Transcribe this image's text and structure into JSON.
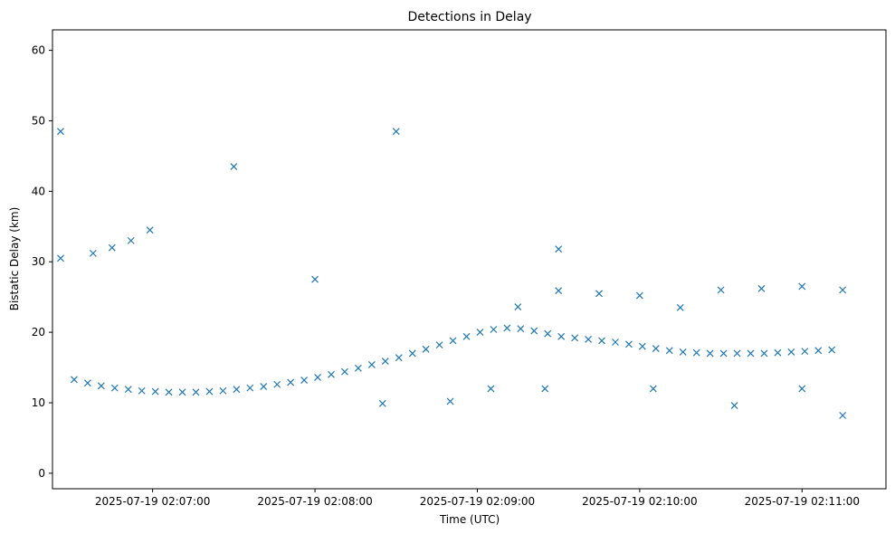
{
  "chart_data": {
    "type": "scatter",
    "title": "Detections in Delay",
    "xlabel": "Time (UTC)",
    "ylabel": "Bistatic Delay (km)",
    "x_tick_labels": [
      "2025-07-19 02:07:00",
      "2025-07-19 02:08:00",
      "2025-07-19 02:09:00",
      "2025-07-19 02:10:00",
      "2025-07-19 02:11:00"
    ],
    "y_ticks": [
      0,
      10,
      20,
      30,
      40,
      50,
      60
    ],
    "xlim": [
      "2025-07-19 02:06:23",
      "2025-07-19 02:11:31"
    ],
    "ylim": [
      -2.2,
      62.9
    ],
    "grid": false,
    "marker": "x",
    "color": "#1f77b4",
    "series": [
      {
        "x": [
          "2025-07-19 02:06:31",
          "2025-07-19 02:06:36",
          "2025-07-19 02:06:41",
          "2025-07-19 02:06:46",
          "2025-07-19 02:06:51",
          "2025-07-19 02:06:56",
          "2025-07-19 02:07:01",
          "2025-07-19 02:07:06",
          "2025-07-19 02:07:11",
          "2025-07-19 02:07:16",
          "2025-07-19 02:07:21",
          "2025-07-19 02:07:26",
          "2025-07-19 02:07:31",
          "2025-07-19 02:07:36",
          "2025-07-19 02:07:41",
          "2025-07-19 02:07:46",
          "2025-07-19 02:07:51",
          "2025-07-19 02:07:56",
          "2025-07-19 02:08:01",
          "2025-07-19 02:08:06",
          "2025-07-19 02:08:11",
          "2025-07-19 02:08:16",
          "2025-07-19 02:08:21",
          "2025-07-19 02:08:26",
          "2025-07-19 02:08:31",
          "2025-07-19 02:08:36",
          "2025-07-19 02:08:41",
          "2025-07-19 02:08:46",
          "2025-07-19 02:08:51",
          "2025-07-19 02:08:56",
          "2025-07-19 02:09:01",
          "2025-07-19 02:09:06",
          "2025-07-19 02:09:11",
          "2025-07-19 02:09:16",
          "2025-07-19 02:09:21",
          "2025-07-19 02:09:26",
          "2025-07-19 02:09:31",
          "2025-07-19 02:09:36",
          "2025-07-19 02:09:41",
          "2025-07-19 02:09:46",
          "2025-07-19 02:09:51",
          "2025-07-19 02:09:56",
          "2025-07-19 02:10:01",
          "2025-07-19 02:10:06",
          "2025-07-19 02:10:11",
          "2025-07-19 02:10:16",
          "2025-07-19 02:10:21",
          "2025-07-19 02:10:26",
          "2025-07-19 02:10:31",
          "2025-07-19 02:10:36",
          "2025-07-19 02:10:41",
          "2025-07-19 02:10:46",
          "2025-07-19 02:10:51",
          "2025-07-19 02:10:56",
          "2025-07-19 02:11:01",
          "2025-07-19 02:11:06",
          "2025-07-19 02:11:11"
        ],
        "y": [
          13.3,
          12.8,
          12.4,
          12.1,
          11.9,
          11.7,
          11.6,
          11.5,
          11.5,
          11.5,
          11.6,
          11.7,
          11.9,
          12.1,
          12.3,
          12.6,
          12.9,
          13.2,
          13.6,
          14.0,
          14.4,
          14.9,
          15.4,
          15.9,
          16.4,
          17.0,
          17.6,
          18.2,
          18.8,
          19.4,
          20.0,
          20.4,
          20.6,
          20.5,
          20.2,
          19.8,
          19.4,
          19.2,
          19.0,
          18.8,
          18.6,
          18.3,
          18.0,
          17.7,
          17.4,
          17.2,
          17.1,
          17.0,
          17.0,
          17.0,
          17.0,
          17.0,
          17.1,
          17.2,
          17.3,
          17.4,
          17.5
        ]
      },
      {
        "x": [
          "2025-07-19 02:06:38",
          "2025-07-19 02:06:45",
          "2025-07-19 02:06:52",
          "2025-07-19 02:06:59"
        ],
        "y": [
          31.2,
          32.0,
          33.0,
          34.5
        ]
      },
      {
        "x": [
          "2025-07-19 02:09:15",
          "2025-07-19 02:09:30",
          "2025-07-19 02:09:45",
          "2025-07-19 02:10:00",
          "2025-07-19 02:10:15",
          "2025-07-19 02:10:30",
          "2025-07-19 02:10:45",
          "2025-07-19 02:11:00",
          "2025-07-19 02:11:15"
        ],
        "y": [
          23.6,
          25.9,
          25.5,
          25.2,
          23.5,
          26.0,
          26.2,
          26.5,
          26.0
        ]
      },
      {
        "x": [
          "2025-07-19 02:08:25",
          "2025-07-19 02:08:50",
          "2025-07-19 02:09:05",
          "2025-07-19 02:09:25",
          "2025-07-19 02:10:05",
          "2025-07-19 02:10:35",
          "2025-07-19 02:11:00",
          "2025-07-19 02:11:15"
        ],
        "y": [
          9.9,
          10.2,
          12.0,
          12.0,
          12.0,
          9.6,
          12.0,
          8.2
        ]
      },
      {
        "x": [
          "2025-07-19 02:06:26",
          "2025-07-19 02:06:26",
          "2025-07-19 02:08:00",
          "2025-07-19 02:08:30",
          "2025-07-19 02:09:30",
          "2025-07-19 02:07:30"
        ],
        "y": [
          48.5,
          30.5,
          27.5,
          48.5,
          31.8,
          43.5
        ]
      }
    ]
  }
}
